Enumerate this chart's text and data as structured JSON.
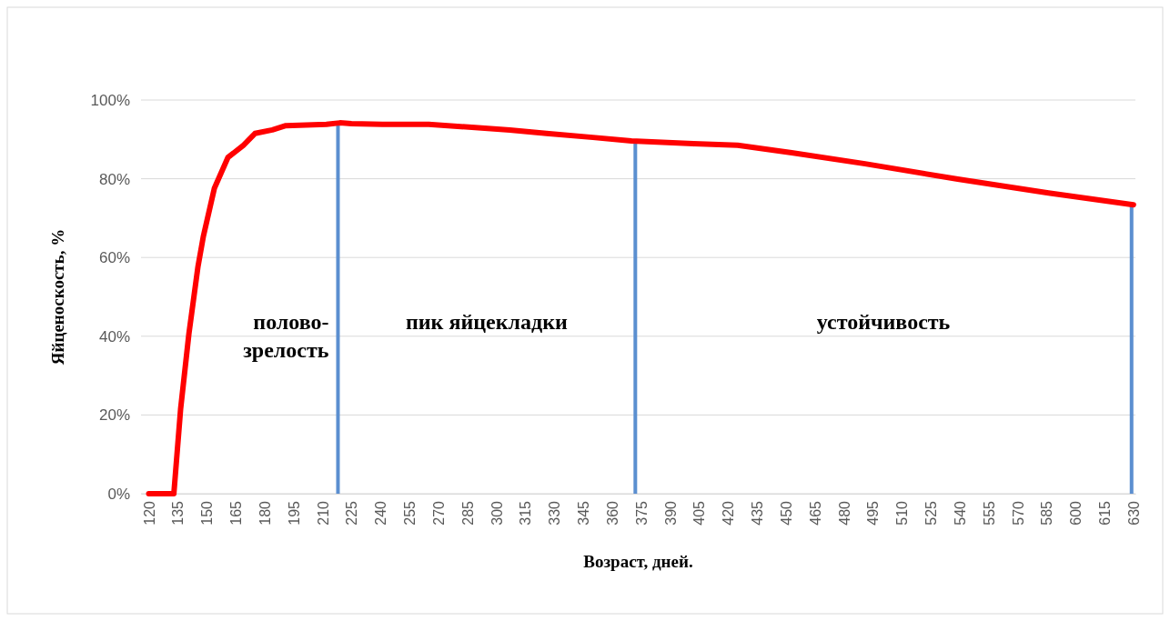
{
  "chart_data": {
    "type": "line",
    "xlabel": "Возраст, дней.",
    "ylabel": "Яйценоскость, %",
    "series": [
      {
        "color": "#ff0000",
        "x": [
          120,
          133,
          136.5,
          140.8,
          145.5,
          148.3,
          154,
          161,
          169,
          175,
          184,
          191,
          212,
          219,
          225,
          241,
          265,
          289,
          307,
          326,
          350,
          370,
          402,
          425,
          453,
          491,
          539,
          586,
          630
        ],
        "values": [
          0,
          0,
          21.5,
          40.6,
          57.7,
          65.4,
          77.6,
          85.4,
          88.5,
          91.5,
          92.4,
          93.5,
          93.8,
          94.2,
          94,
          93.8,
          93.8,
          93,
          92.4,
          91.5,
          90.5,
          89.6,
          88.9,
          88.5,
          86.6,
          83.8,
          79.9,
          76.4,
          73.4
        ]
      }
    ],
    "xlim": [
      116,
      631
    ],
    "xticks": [
      120,
      135,
      150,
      165,
      180,
      195,
      210,
      225,
      240,
      255,
      270,
      285,
      300,
      315,
      330,
      345,
      360,
      375,
      390,
      405,
      420,
      435,
      450,
      465,
      480,
      495,
      510,
      525,
      540,
      555,
      570,
      585,
      600,
      615,
      630
    ],
    "ylim": [
      0,
      100
    ],
    "yticks": [
      {
        "value": 0,
        "label": "0%"
      },
      {
        "value": 20,
        "label": "20%"
      },
      {
        "value": 40,
        "label": "40%"
      },
      {
        "value": 60,
        "label": "60%"
      },
      {
        "value": 80,
        "label": "80%"
      },
      {
        "value": 100,
        "label": "100%"
      }
    ],
    "grid": "y",
    "marker": "none",
    "line_style": "solid",
    "ref_lines": [
      {
        "axis": "x",
        "value": 218,
        "color": "#5b8fd0"
      },
      {
        "axis": "x",
        "value": 372,
        "color": "#5b8fd0"
      },
      {
        "axis": "x",
        "value": 629,
        "color": "#5b8fd0"
      }
    ],
    "annotations": [
      "полово-\nзрелость",
      "пик яйцекладки",
      "устойчивость"
    ]
  }
}
